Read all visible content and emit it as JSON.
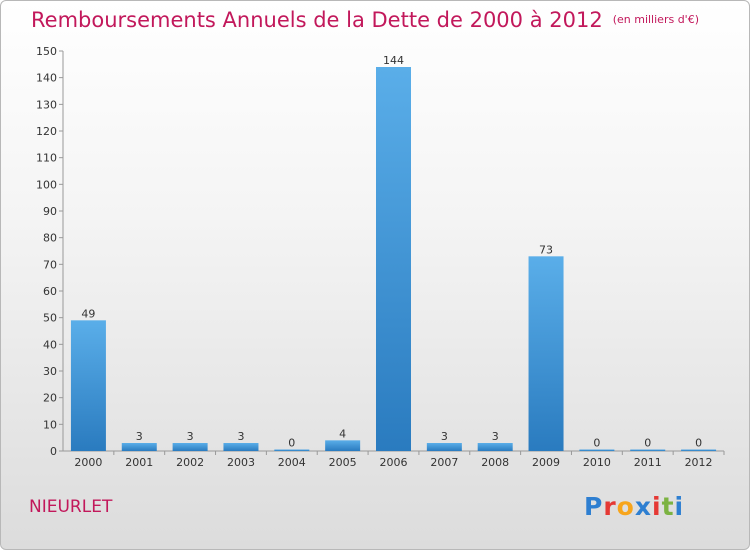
{
  "header": {
    "title": "Remboursements Annuels de la Dette de 2000 à 2012",
    "unit": "(en milliers d'€)"
  },
  "footer": {
    "city": "NIEURLET",
    "logo_text": "Proxiti",
    "logo_colors": [
      "#2e7fd1",
      "#e53935",
      "#f7a51c",
      "#2e7fd1",
      "#e53935",
      "#7cb342",
      "#2e7fd1"
    ]
  },
  "colors": {
    "title": "#c2185b",
    "bar_top": "#5aaee9",
    "bar_bottom": "#2a7bbf"
  },
  "chart_data": {
    "type": "bar",
    "categories": [
      "2000",
      "2001",
      "2002",
      "2003",
      "2004",
      "2005",
      "2006",
      "2007",
      "2008",
      "2009",
      "2010",
      "2011",
      "2012"
    ],
    "values": [
      49,
      3,
      3,
      3,
      0,
      4,
      144,
      3,
      3,
      73,
      0,
      0,
      0
    ],
    "ylim": [
      0,
      150
    ],
    "yticks": [
      0,
      10,
      20,
      30,
      40,
      50,
      60,
      70,
      80,
      90,
      100,
      110,
      120,
      130,
      140,
      150
    ],
    "grid": false,
    "legend": "none"
  }
}
